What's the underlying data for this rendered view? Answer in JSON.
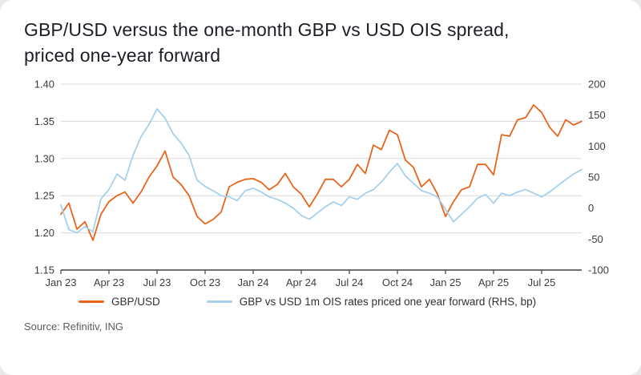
{
  "page": {
    "title": "GBP/USD versus the one-month GBP vs USD OIS spread,\npriced one-year forward",
    "source": "Source: Refinitiv, ING"
  },
  "colors": {
    "gbpusd_line": "#e8641b",
    "ois_line": "#a6d0ec",
    "grid": "#d9d9d9",
    "axis": "#404040",
    "tick_text": "#3c3c3c"
  },
  "legend": [
    {
      "label": "GBP/USD",
      "color": "#e8641b"
    },
    {
      "label": "GBP vs USD 1m OIS rates priced one year forward (RHS, bp)",
      "color": "#a6d0ec"
    }
  ],
  "chart_data": {
    "type": "line",
    "title": "GBP/USD versus the one-month GBP vs USD OIS spread, priced one-year forward",
    "grid": true,
    "x_tick_labels": [
      "Jan 23",
      "Apr 23",
      "Jul 23",
      "Oct 23",
      "Jan 24",
      "Apr 24",
      "Jul 24",
      "Oct 24",
      "Jan 25",
      "Apr 25",
      "Jul 25"
    ],
    "x_tick_indices": [
      0,
      6,
      12,
      18,
      24,
      30,
      36,
      42,
      48,
      54,
      60
    ],
    "left_axis": {
      "min": 1.15,
      "max": 1.4,
      "ticks": [
        "1.40",
        "1.35",
        "1.30",
        "1.25",
        "1.20",
        "1.15"
      ]
    },
    "right_axis": {
      "min": -100,
      "max": 200,
      "ticks": [
        "200",
        "150",
        "100",
        "50",
        "0",
        "-50",
        "-100"
      ]
    },
    "series": [
      {
        "name": "GBP/USD",
        "axis": "left",
        "color": "#e8641b",
        "values": [
          1.225,
          1.24,
          1.205,
          1.215,
          1.19,
          1.225,
          1.242,
          1.25,
          1.255,
          1.24,
          1.255,
          1.275,
          1.29,
          1.31,
          1.275,
          1.265,
          1.25,
          1.222,
          1.212,
          1.218,
          1.228,
          1.262,
          1.268,
          1.272,
          1.273,
          1.268,
          1.258,
          1.265,
          1.28,
          1.262,
          1.252,
          1.235,
          1.252,
          1.272,
          1.272,
          1.262,
          1.272,
          1.292,
          1.28,
          1.318,
          1.312,
          1.338,
          1.332,
          1.298,
          1.288,
          1.262,
          1.272,
          1.252,
          1.222,
          1.242,
          1.258,
          1.262,
          1.292,
          1.292,
          1.278,
          1.332,
          1.33,
          1.352,
          1.355,
          1.372,
          1.362,
          1.342,
          1.33,
          1.352,
          1.345,
          1.35
        ]
      },
      {
        "name": "GBP vs USD 1m OIS rates priced one year forward (RHS, bp)",
        "axis": "right",
        "color": "#a6d0ec",
        "values": [
          5,
          -35,
          -40,
          -30,
          -38,
          15,
          30,
          55,
          45,
          85,
          115,
          135,
          160,
          145,
          120,
          105,
          85,
          45,
          35,
          28,
          20,
          18,
          12,
          28,
          32,
          26,
          18,
          14,
          8,
          0,
          -12,
          -18,
          -8,
          2,
          10,
          4,
          18,
          14,
          24,
          30,
          42,
          58,
          72,
          52,
          40,
          28,
          24,
          18,
          -2,
          -22,
          -10,
          2,
          16,
          22,
          8,
          24,
          20,
          26,
          30,
          24,
          18,
          26,
          36,
          46,
          55,
          62
        ]
      }
    ]
  }
}
